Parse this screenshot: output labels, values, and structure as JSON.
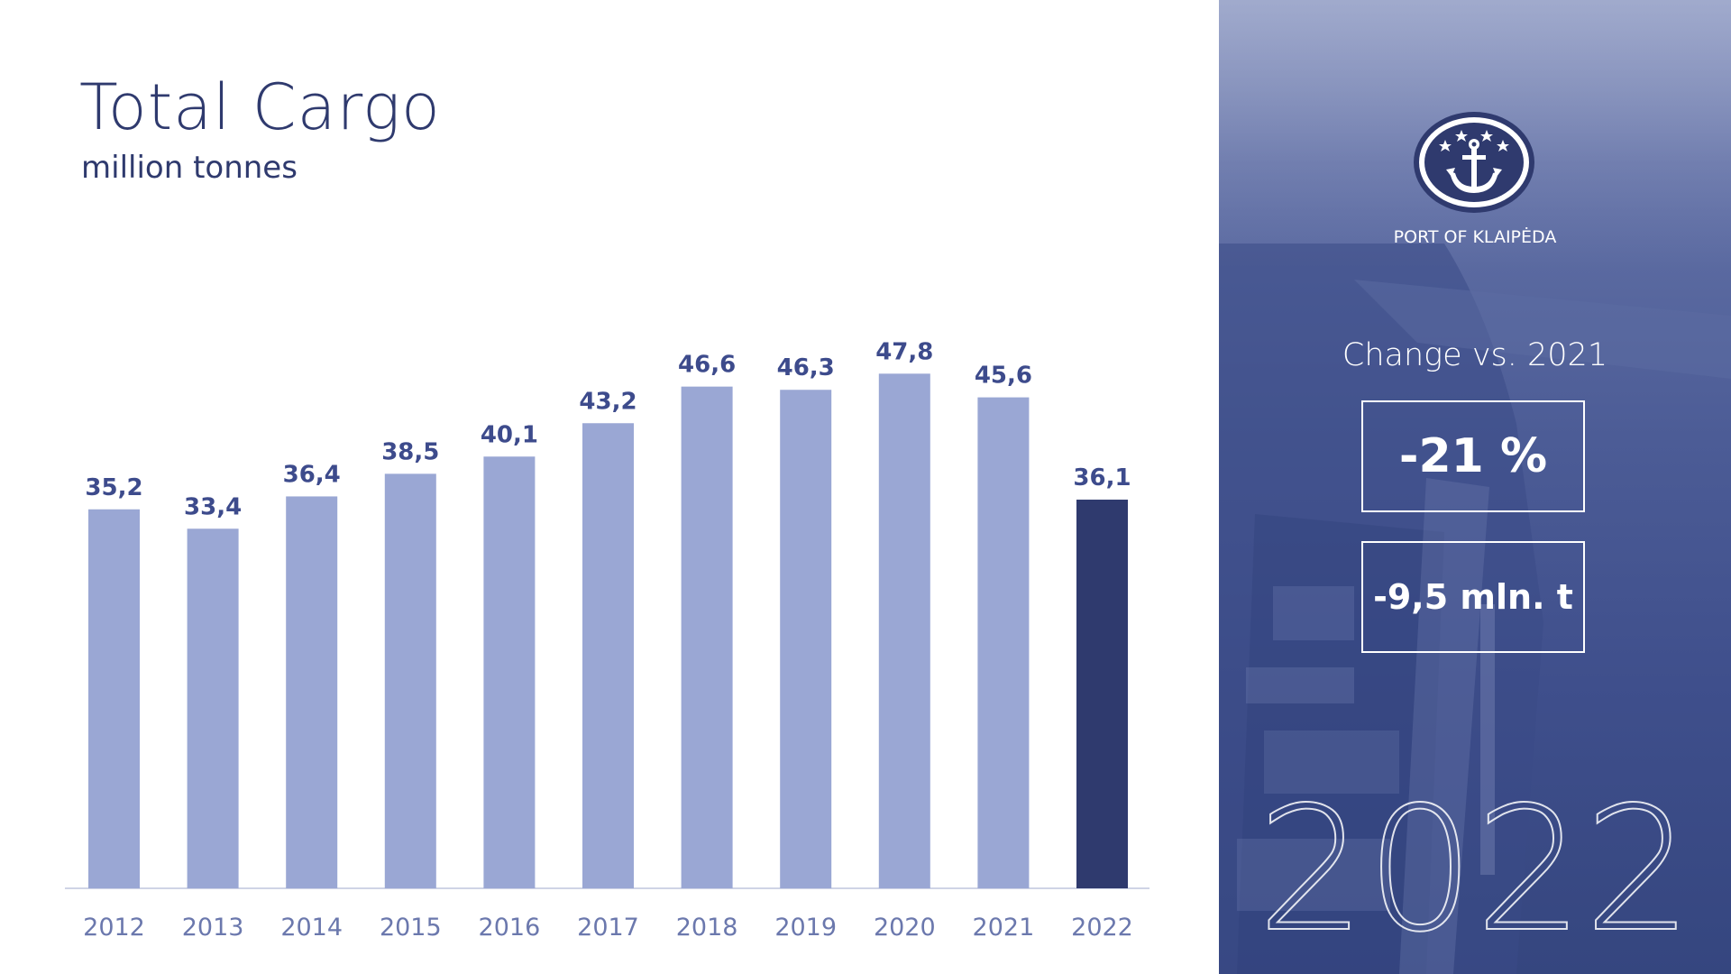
{
  "page": {
    "title": "Total Cargo",
    "subtitle": "million tonnes"
  },
  "sidebar": {
    "brand": "PORT OF KLAIPĖDA",
    "change_label": "Change vs. 2021",
    "change_percent": "-21 %",
    "change_amount": "-9,5 mln. t",
    "year": "2022"
  },
  "colors": {
    "bar": "#9aa7d4",
    "bar_highlight": "#2f3a6e",
    "label": "#3d4b8c",
    "tick": "#6b78ad",
    "axis": "#cfd4e6",
    "panel": "#4c5c96"
  },
  "chart_data": {
    "type": "bar",
    "title": "Total Cargo",
    "ylabel": "million tonnes",
    "xlabel": "",
    "categories": [
      "2012",
      "2013",
      "2014",
      "2015",
      "2016",
      "2017",
      "2018",
      "2019",
      "2020",
      "2021",
      "2022"
    ],
    "values": [
      35.2,
      33.4,
      36.4,
      38.5,
      40.1,
      43.2,
      46.6,
      46.3,
      47.8,
      45.6,
      36.1
    ],
    "value_labels": [
      "35,2",
      "33,4",
      "36,4",
      "38,5",
      "40,1",
      "43,2",
      "46,6",
      "46,3",
      "47,8",
      "45,6",
      "36,1"
    ],
    "highlight_category": "2022",
    "ylim": [
      0,
      54
    ],
    "grid": false,
    "legend": "none"
  }
}
